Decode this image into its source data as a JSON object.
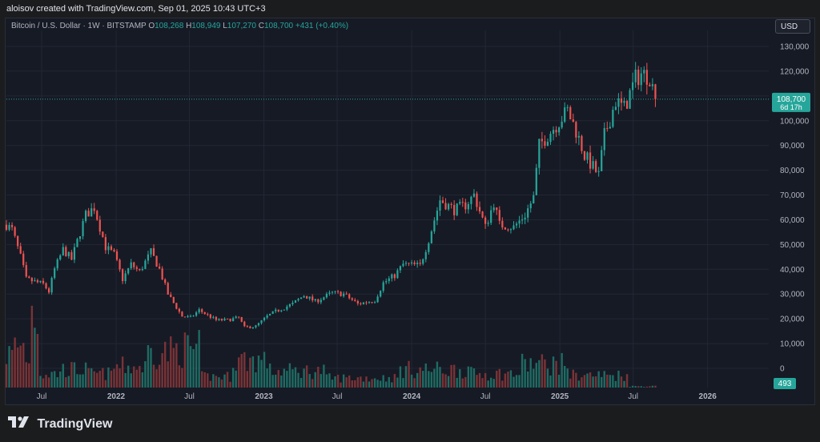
{
  "header": {
    "attribution": "aloisov created with TradingView.com, Sep 01, 2025 10:43 UTC+3"
  },
  "legend": {
    "symbol": "Bitcoin / U.S. Dollar · 1W · BITSTAMP",
    "open_label": "O",
    "open": "108,268",
    "high_label": "H",
    "high": "108,949",
    "low_label": "L",
    "low": "107,270",
    "close_label": "C",
    "close": "108,700",
    "change": "+431 (+0.40%)"
  },
  "currency_button": "USD",
  "price_badge": {
    "price": "108,700",
    "countdown": "6d 17h"
  },
  "volume_badge": "493",
  "brand": {
    "name": "TradingView"
  },
  "colors": {
    "up": "#26a69a",
    "down": "#ef5350",
    "up_volume": "#1f6b63",
    "down_volume": "#7a3336",
    "price_line": "#26a69a",
    "grid": "#232735",
    "axis_text": "#b2b5be"
  },
  "chart_data": {
    "type": "candlestick",
    "symbol": "Bitcoin / U.S. Dollar",
    "interval": "1W",
    "exchange": "BITSTAMP",
    "y_axis": {
      "ticks": [
        0,
        10000,
        20000,
        30000,
        40000,
        50000,
        60000,
        70000,
        80000,
        90000,
        100000,
        110000,
        120000,
        130000
      ],
      "tick_labels": [
        "0",
        "10,000",
        "20,000",
        "30,000",
        "40,000",
        "50,000",
        "60,000",
        "70,000",
        "80,000",
        "90,000",
        "100,000",
        "110,000",
        "120,000",
        "130,000"
      ]
    },
    "x_axis": {
      "ticks": [
        {
          "date": "2021-07-01",
          "label": "Jul"
        },
        {
          "date": "2022-01-01",
          "label": "2022"
        },
        {
          "date": "2022-07-01",
          "label": "Jul"
        },
        {
          "date": "2023-01-01",
          "label": "2023"
        },
        {
          "date": "2023-07-01",
          "label": "Jul"
        },
        {
          "date": "2024-01-01",
          "label": "2024"
        },
        {
          "date": "2024-07-01",
          "label": "Jul"
        },
        {
          "date": "2025-01-01",
          "label": "2025"
        },
        {
          "date": "2025-07-01",
          "label": "Jul"
        },
        {
          "date": "2026-01-01",
          "label": "2026"
        }
      ],
      "range": [
        "2021-04-05",
        "2026-06-01"
      ]
    },
    "last_price": 108700,
    "price_series": [
      {
        "date": "2021-04-05",
        "close": 58000
      },
      {
        "date": "2021-04-19",
        "close": 56000
      },
      {
        "date": "2021-05-10",
        "close": 45000
      },
      {
        "date": "2021-05-24",
        "close": 36000
      },
      {
        "date": "2021-06-14",
        "close": 35000
      },
      {
        "date": "2021-07-05",
        "close": 34000
      },
      {
        "date": "2021-07-19",
        "close": 31000
      },
      {
        "date": "2021-08-02",
        "close": 40000
      },
      {
        "date": "2021-08-23",
        "close": 48000
      },
      {
        "date": "2021-09-13",
        "close": 44000
      },
      {
        "date": "2021-10-04",
        "close": 55000
      },
      {
        "date": "2021-10-18",
        "close": 62000
      },
      {
        "date": "2021-11-08",
        "close": 65000
      },
      {
        "date": "2021-11-22",
        "close": 57000
      },
      {
        "date": "2021-12-06",
        "close": 49000
      },
      {
        "date": "2021-12-27",
        "close": 46000
      },
      {
        "date": "2022-01-17",
        "close": 36000
      },
      {
        "date": "2022-02-07",
        "close": 42000
      },
      {
        "date": "2022-02-28",
        "close": 39000
      },
      {
        "date": "2022-03-28",
        "close": 47000
      },
      {
        "date": "2022-04-18",
        "close": 40000
      },
      {
        "date": "2022-05-09",
        "close": 30000
      },
      {
        "date": "2022-06-13",
        "close": 21000
      },
      {
        "date": "2022-07-04",
        "close": 20500
      },
      {
        "date": "2022-07-25",
        "close": 23500
      },
      {
        "date": "2022-08-15",
        "close": 21500
      },
      {
        "date": "2022-09-05",
        "close": 19500
      },
      {
        "date": "2022-10-03",
        "close": 19500
      },
      {
        "date": "2022-10-31",
        "close": 20500
      },
      {
        "date": "2022-11-14",
        "close": 16500
      },
      {
        "date": "2022-12-12",
        "close": 17000
      },
      {
        "date": "2023-01-09",
        "close": 21000
      },
      {
        "date": "2023-01-30",
        "close": 23000
      },
      {
        "date": "2023-03-13",
        "close": 26000
      },
      {
        "date": "2023-04-10",
        "close": 29500
      },
      {
        "date": "2023-05-08",
        "close": 27000
      },
      {
        "date": "2023-06-19",
        "close": 30500
      },
      {
        "date": "2023-07-17",
        "close": 30000
      },
      {
        "date": "2023-08-21",
        "close": 26000
      },
      {
        "date": "2023-10-02",
        "close": 27500
      },
      {
        "date": "2023-10-23",
        "close": 34500
      },
      {
        "date": "2023-11-20",
        "close": 37500
      },
      {
        "date": "2023-12-11",
        "close": 42000
      },
      {
        "date": "2024-01-22",
        "close": 41500
      },
      {
        "date": "2024-02-12",
        "close": 52000
      },
      {
        "date": "2024-03-11",
        "close": 68000
      },
      {
        "date": "2024-04-15",
        "close": 64000
      },
      {
        "date": "2024-05-13",
        "close": 66000
      },
      {
        "date": "2024-06-03",
        "close": 70000
      },
      {
        "date": "2024-07-01",
        "close": 57000
      },
      {
        "date": "2024-07-22",
        "close": 67000
      },
      {
        "date": "2024-08-05",
        "close": 58000
      },
      {
        "date": "2024-09-09",
        "close": 57000
      },
      {
        "date": "2024-10-07",
        "close": 62000
      },
      {
        "date": "2024-10-28",
        "close": 69000
      },
      {
        "date": "2024-11-11",
        "close": 90000
      },
      {
        "date": "2024-12-16",
        "close": 97000
      },
      {
        "date": "2025-01-20",
        "close": 104000
      },
      {
        "date": "2025-02-10",
        "close": 96000
      },
      {
        "date": "2025-03-03",
        "close": 86000
      },
      {
        "date": "2025-04-07",
        "close": 78000
      },
      {
        "date": "2025-04-21",
        "close": 94000
      },
      {
        "date": "2025-05-19",
        "close": 108000
      },
      {
        "date": "2025-06-09",
        "close": 105000
      },
      {
        "date": "2025-07-07",
        "close": 117000
      },
      {
        "date": "2025-07-21",
        "close": 119000
      },
      {
        "date": "2025-08-11",
        "close": 118000
      },
      {
        "date": "2025-08-25",
        "close": 108700
      }
    ],
    "volume_series": [
      {
        "date": "2021-04-05",
        "volume": 12000
      },
      {
        "date": "2021-05-10",
        "volume": 15000
      },
      {
        "date": "2021-05-24",
        "volume": 11000
      },
      {
        "date": "2021-06-14",
        "volume": 28000
      },
      {
        "date": "2021-07-05",
        "volume": 5000
      },
      {
        "date": "2021-09-13",
        "volume": 6500
      },
      {
        "date": "2021-11-22",
        "volume": 5000
      },
      {
        "date": "2022-01-17",
        "volume": 7500
      },
      {
        "date": "2022-05-09",
        "volume": 13000
      },
      {
        "date": "2022-06-13",
        "volume": 14000
      },
      {
        "date": "2022-09-05",
        "volume": 4000
      },
      {
        "date": "2022-11-14",
        "volume": 10000
      },
      {
        "date": "2023-03-13",
        "volume": 6000
      },
      {
        "date": "2023-08-21",
        "volume": 3500
      },
      {
        "date": "2024-03-11",
        "volume": 6500
      },
      {
        "date": "2024-08-05",
        "volume": 5000
      },
      {
        "date": "2024-11-11",
        "volume": 8500
      },
      {
        "date": "2025-04-07",
        "volume": 4500
      },
      {
        "date": "2025-08-25",
        "volume": 493
      }
    ]
  }
}
